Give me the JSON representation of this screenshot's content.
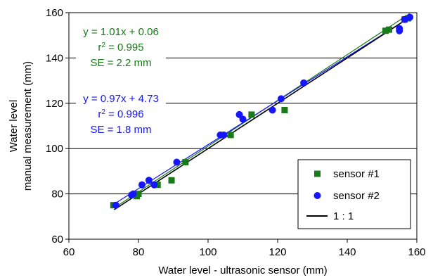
{
  "chart_data": {
    "type": "scatter",
    "xlabel": "Water level - ultrasonic sensor  (mm)",
    "ylabel_lines": [
      "Water level",
      "manual measurement  (mm)"
    ],
    "xlim": [
      60,
      160
    ],
    "ylim": [
      60,
      160
    ],
    "xticks": [
      60,
      80,
      100,
      120,
      140,
      160
    ],
    "yticks": [
      60,
      80,
      100,
      120,
      140,
      160
    ],
    "grid": "horizontal",
    "legend_position": "bottom-right",
    "series": [
      {
        "name": "sensor #1",
        "marker": "square",
        "color": "#1a7a1a",
        "points": [
          [
            72.8,
            75
          ],
          [
            79.5,
            79
          ],
          [
            80,
            80
          ],
          [
            85.5,
            84
          ],
          [
            89.5,
            86
          ],
          [
            93.5,
            94
          ],
          [
            104,
            106
          ],
          [
            106.5,
            106
          ],
          [
            112.5,
            115
          ],
          [
            122,
            117
          ],
          [
            151,
            152
          ],
          [
            152,
            152.5
          ],
          [
            156.5,
            157
          ],
          [
            157.5,
            157.5
          ]
        ]
      },
      {
        "name": "sensor #2",
        "marker": "circle",
        "color": "#1515ff",
        "points": [
          [
            73.5,
            75
          ],
          [
            78,
            79.5
          ],
          [
            78.5,
            80
          ],
          [
            81,
            84
          ],
          [
            83,
            86
          ],
          [
            84.5,
            84
          ],
          [
            91,
            94
          ],
          [
            103.5,
            106
          ],
          [
            104.5,
            106
          ],
          [
            109,
            115
          ],
          [
            110,
            113
          ],
          [
            118.5,
            117
          ],
          [
            121,
            122
          ],
          [
            127.5,
            129
          ],
          [
            155,
            152
          ],
          [
            155,
            153
          ],
          [
            156.5,
            157
          ],
          [
            158,
            158
          ]
        ]
      },
      {
        "name": "1 : 1",
        "type": "line",
        "color": "#000000",
        "points": [
          [
            73,
            73
          ],
          [
            158,
            158
          ]
        ]
      }
    ],
    "fit_lines": [
      {
        "color": "#1a7a1a",
        "slope": 1.01,
        "intercept": 0.06,
        "x_range": [
          73,
          158
        ]
      },
      {
        "color": "#1515ff",
        "slope": 0.97,
        "intercept": 4.73,
        "x_range": [
          73,
          158
        ]
      }
    ],
    "annotations": [
      {
        "color": "#1a7a1a",
        "lines": [
          {
            "main": "y = 1.01x + 0.06"
          },
          {
            "main": "r",
            "sup": "2",
            "rest": " = 0.995"
          },
          {
            "main": "SE = 2.2 mm"
          }
        ]
      },
      {
        "color": "#1515ff",
        "lines": [
          {
            "main": "y = 0.97x + 4.73"
          },
          {
            "main": "r",
            "sup": "2",
            "rest": " = 0.996"
          },
          {
            "main": "SE = 1.8 mm"
          }
        ]
      }
    ]
  }
}
